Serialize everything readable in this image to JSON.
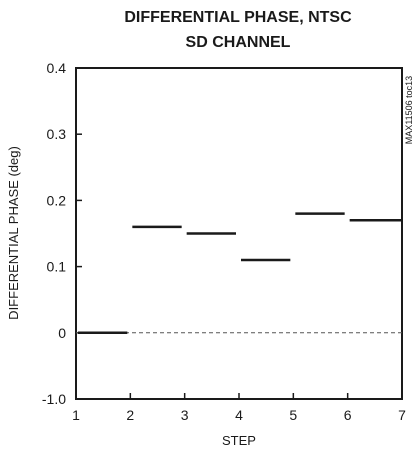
{
  "chart_data": {
    "type": "line",
    "title_line1": "DIFFERENTIAL PHASE, NTSC",
    "title_line2": "SD CHANNEL",
    "xlabel": "STEP",
    "ylabel": "DIFFERENTIAL PHASE (deg)",
    "side_note": "MAX11506 toc13",
    "x_ticks": [
      "1",
      "2",
      "3",
      "4",
      "5",
      "6",
      "7"
    ],
    "y_ticks": [
      "0.4",
      "0.3",
      "0.2",
      "0.1",
      "0",
      "-1.0"
    ],
    "xlim": [
      1,
      7
    ],
    "ylim_note": "axis labels 0.4 to -1.0 (broken scale)",
    "reference_line": {
      "y": 0,
      "style": "dashed"
    },
    "series": [
      {
        "segments": [
          {
            "x": [
              1,
              2
            ],
            "y": 0
          },
          {
            "x": [
              2,
              3
            ],
            "y": 0.16
          },
          {
            "x": [
              3,
              4
            ],
            "y": 0.15
          },
          {
            "x": [
              4,
              5
            ],
            "y": 0.11
          },
          {
            "x": [
              5,
              6
            ],
            "y": 0.18
          },
          {
            "x": [
              6,
              7
            ],
            "y": 0.17
          }
        ]
      }
    ],
    "grid": false,
    "colors": {
      "line": "#1a1a1a",
      "reference": "#555555"
    }
  }
}
